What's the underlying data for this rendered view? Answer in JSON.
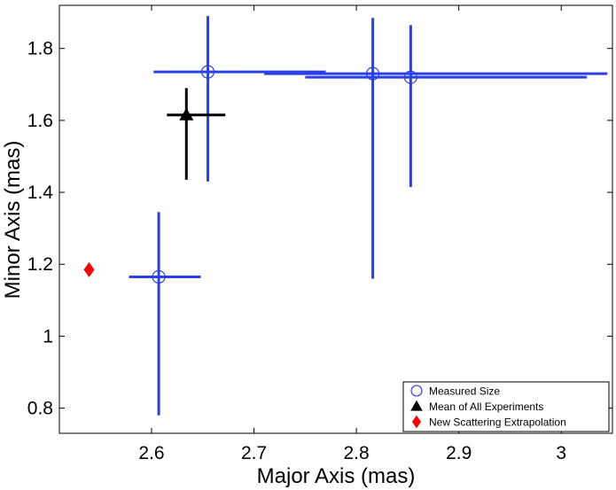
{
  "chart_data": {
    "type": "scatter",
    "xlabel": "Major Axis (mas)",
    "ylabel": "Minor Axis (mas)",
    "xlim": [
      2.51,
      3.05
    ],
    "ylim": [
      0.73,
      1.92
    ],
    "xticks": [
      2.6,
      2.7,
      2.8,
      2.9,
      3.0
    ],
    "xtick_labels": [
      "2.6",
      "2.7",
      "2.8",
      "2.9",
      "3"
    ],
    "yticks": [
      0.8,
      1.0,
      1.2,
      1.4,
      1.6,
      1.8
    ],
    "ytick_labels": [
      "0.8",
      "1",
      "1.2",
      "1.4",
      "1.6",
      "1.8"
    ],
    "grid": false,
    "legend_position": "bottom-right",
    "series": [
      {
        "name": "Measured Size",
        "marker": "open-circle",
        "color": "#2a3fe5",
        "points": [
          {
            "x": 2.607,
            "y": 1.165,
            "x_err": [
              2.578,
              2.648
            ],
            "y_err": [
              0.78,
              1.345
            ]
          },
          {
            "x": 2.655,
            "y": 1.735,
            "x_err": [
              2.602,
              2.77
            ],
            "y_err": [
              1.43,
              1.89
            ]
          },
          {
            "x": 2.816,
            "y": 1.73,
            "x_err": [
              2.71,
              3.045
            ],
            "y_err": [
              1.16,
              1.885
            ]
          },
          {
            "x": 2.853,
            "y": 1.72,
            "x_err": [
              2.75,
              3.025
            ],
            "y_err": [
              1.415,
              1.865
            ]
          }
        ]
      },
      {
        "name": "Mean of All Experiments",
        "marker": "filled-triangle",
        "color": "#000000",
        "points": [
          {
            "x": 2.634,
            "y": 1.615,
            "x_err": [
              2.615,
              2.672
            ],
            "y_err": [
              1.435,
              1.69
            ]
          }
        ]
      },
      {
        "name": "New Scattering Extrapolation",
        "marker": "filled-diamond",
        "color": "#ff0000",
        "points": [
          {
            "x": 2.539,
            "y": 1.185
          }
        ]
      }
    ]
  }
}
